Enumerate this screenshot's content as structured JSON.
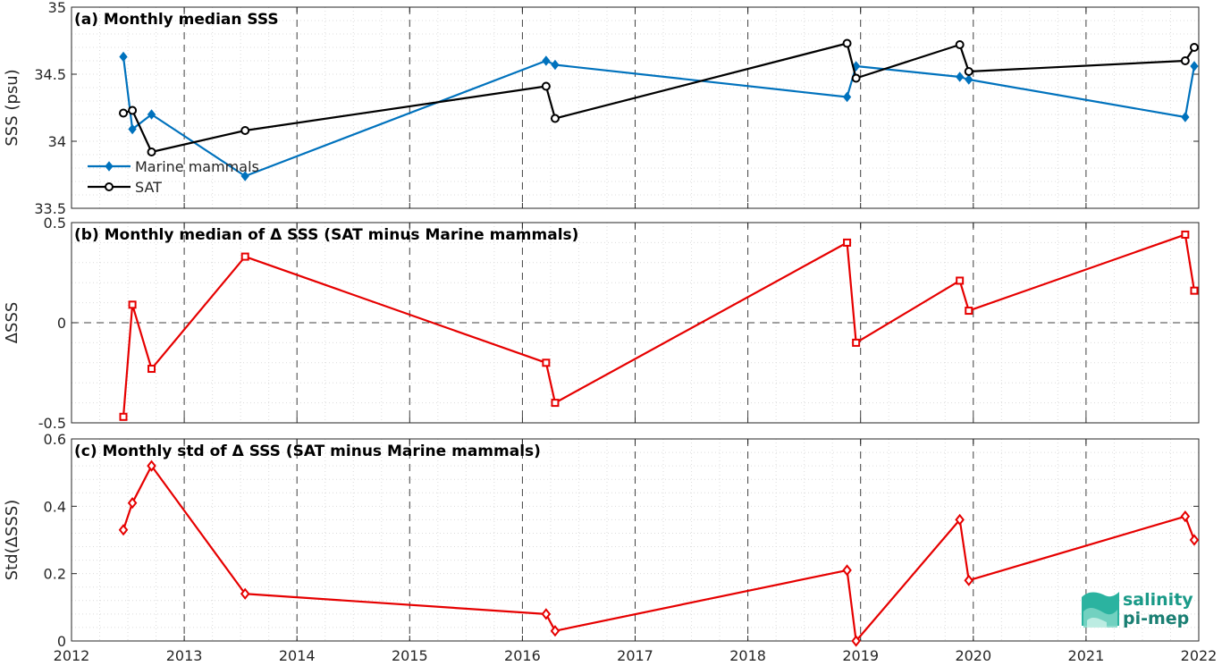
{
  "chart_data": [
    {
      "type": "line",
      "title": "(a) Monthly median SSS",
      "ylabel": "SSS (psu)",
      "xlim": [
        2012,
        2022
      ],
      "ylim": [
        33.5,
        35
      ],
      "yticks": [
        33.5,
        34,
        34.5,
        35
      ],
      "yticklabels": [
        "33.5",
        "34",
        "34.5",
        "35"
      ],
      "grid": true,
      "legend": "lower-left",
      "series": [
        {
          "name": "Marine mammals",
          "color": "#0072bd",
          "marker": "diamond",
          "x": [
            2012.46,
            2012.54,
            2012.71,
            2013.54,
            2016.21,
            2016.29,
            2018.88,
            2018.96,
            2019.88,
            2019.96,
            2021.88,
            2021.96
          ],
          "y": [
            34.63,
            34.09,
            34.2,
            33.74,
            34.6,
            34.57,
            34.33,
            34.56,
            34.48,
            34.46,
            34.18,
            34.56
          ]
        },
        {
          "name": "SAT",
          "color": "#000000",
          "marker": "circle",
          "x": [
            2012.46,
            2012.54,
            2012.71,
            2013.54,
            2016.21,
            2016.29,
            2018.88,
            2018.96,
            2019.88,
            2019.96,
            2021.88,
            2021.96
          ],
          "y": [
            34.21,
            34.23,
            33.92,
            34.08,
            34.41,
            34.17,
            34.73,
            34.47,
            34.72,
            34.52,
            34.6,
            34.7
          ]
        }
      ]
    },
    {
      "type": "line",
      "title": "(b) Monthly median of Δ SSS (SAT minus Marine mammals)",
      "ylabel": "ΔSSS",
      "xlim": [
        2012,
        2022
      ],
      "ylim": [
        -0.5,
        0.5
      ],
      "yticks": [
        -0.5,
        0,
        0.5
      ],
      "yticklabels": [
        "-0.5",
        "0",
        "0.5"
      ],
      "grid": true,
      "series": [
        {
          "color": "#e60000",
          "marker": "square",
          "x": [
            2012.46,
            2012.54,
            2012.71,
            2013.54,
            2016.21,
            2016.29,
            2018.88,
            2018.96,
            2019.88,
            2019.96,
            2021.88,
            2021.96
          ],
          "y": [
            -0.47,
            0.09,
            -0.23,
            0.33,
            -0.2,
            -0.4,
            0.4,
            -0.1,
            0.21,
            0.06,
            0.44,
            0.16
          ]
        }
      ]
    },
    {
      "type": "line",
      "title": "(c) Monthly std of Δ SSS (SAT minus Marine mammals)",
      "ylabel": "Std(ΔSSS)",
      "xlabel": "",
      "xlim": [
        2012,
        2022
      ],
      "ylim": [
        0,
        0.6
      ],
      "yticks": [
        0,
        0.2,
        0.4,
        0.6
      ],
      "yticklabels": [
        "0",
        "0.2",
        "0.4",
        "0.6"
      ],
      "xticks": [
        2012,
        2013,
        2014,
        2015,
        2016,
        2017,
        2018,
        2019,
        2020,
        2021,
        2022
      ],
      "xticklabels": [
        "2012",
        "2013",
        "2014",
        "2015",
        "2016",
        "2017",
        "2018",
        "2019",
        "2020",
        "2021",
        "2022"
      ],
      "grid": true,
      "series": [
        {
          "color": "#e60000",
          "marker": "diamond",
          "x": [
            2012.46,
            2012.54,
            2012.71,
            2013.54,
            2016.21,
            2016.29,
            2018.88,
            2018.96,
            2019.88,
            2019.96,
            2021.88,
            2021.96
          ],
          "y": [
            0.33,
            0.41,
            0.52,
            0.14,
            0.08,
            0.03,
            0.21,
            0.0,
            0.36,
            0.18,
            0.37,
            0.3
          ]
        }
      ]
    }
  ],
  "logo": {
    "line1": "salinity",
    "line2": "pi-mep",
    "color": "#1a9a88"
  }
}
